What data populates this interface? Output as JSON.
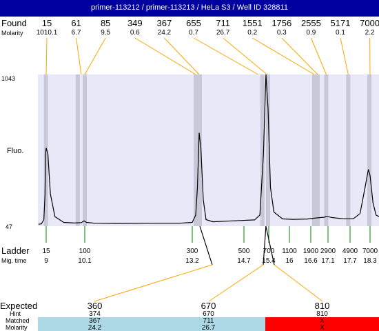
{
  "header": {
    "title": "primer-113212 / primer-113213 / HeLa S3 / Well ID 328811"
  },
  "labels": {
    "found": "Found",
    "molarity": "Molarity",
    "fluo": "Fluo.",
    "ladder": "Ladder",
    "mig_time": "Mig. time",
    "expected": "Expected",
    "hint": "Hint",
    "matched": "Matched",
    "molarity_bottom": "Molarity",
    "y_top": "1043",
    "y_bottom": "47"
  },
  "chart_data": {
    "type": "line",
    "title": "primer-113212 / primer-113213 / HeLa S3 / Well ID 328811",
    "ylabel": "Fluo.",
    "ylim": [
      47,
      1043
    ],
    "found_peaks": [
      {
        "size": "15",
        "molarity": "1010.1",
        "time": 9.0
      },
      {
        "size": "61",
        "molarity": "6.7",
        "time": 10.0
      },
      {
        "size": "85",
        "molarity": "9.5",
        "time": 10.1
      },
      {
        "size": "349",
        "molarity": "0.6",
        "time": 13.3
      },
      {
        "size": "367",
        "molarity": "24.2",
        "time": 13.4
      },
      {
        "size": "655",
        "molarity": "0.7",
        "time": 15.1
      },
      {
        "size": "711",
        "molarity": "26.7",
        "time": 15.35
      },
      {
        "size": "1551",
        "molarity": "0.2",
        "time": 16.7
      },
      {
        "size": "1756",
        "molarity": "0.3",
        "time": 16.8
      },
      {
        "size": "2555",
        "molarity": "0.9",
        "time": 17.05
      },
      {
        "size": "5171",
        "molarity": "0.1",
        "time": 17.65
      },
      {
        "size": "7000",
        "molarity": "2.2",
        "time": 18.3
      }
    ],
    "ladder": [
      {
        "size": "15",
        "time": "9",
        "t": 9.0
      },
      {
        "size": "100",
        "time": "10.1",
        "t": 10.1
      },
      {
        "size": "300",
        "time": "13.2",
        "t": 13.2
      },
      {
        "size": "500",
        "time": "14.7",
        "t": 14.7
      },
      {
        "size": "700",
        "time": "15.4",
        "t": 15.4
      },
      {
        "size": "1100",
        "time": "16",
        "t": 16.0
      },
      {
        "size": "1900",
        "time": "16.6",
        "t": 16.6
      },
      {
        "size": "2900",
        "time": "17.1",
        "t": 17.1
      },
      {
        "size": "4900",
        "time": "17.7",
        "t": 17.7
      },
      {
        "size": "7000",
        "time": "18.3",
        "t": 18.3
      }
    ],
    "trace": [
      [
        8.35,
        60
      ],
      [
        8.6,
        62
      ],
      [
        8.8,
        90
      ],
      [
        8.9,
        250
      ],
      [
        8.95,
        520
      ],
      [
        9.0,
        560
      ],
      [
        9.05,
        520
      ],
      [
        9.12,
        260
      ],
      [
        9.25,
        110
      ],
      [
        9.5,
        72
      ],
      [
        9.8,
        68
      ],
      [
        10.0,
        70
      ],
      [
        10.08,
        82
      ],
      [
        10.15,
        72
      ],
      [
        10.4,
        66
      ],
      [
        11.0,
        65
      ],
      [
        12.0,
        66
      ],
      [
        12.8,
        66
      ],
      [
        13.2,
        72
      ],
      [
        13.3,
        120
      ],
      [
        13.35,
        300
      ],
      [
        13.4,
        660
      ],
      [
        13.45,
        560
      ],
      [
        13.52,
        220
      ],
      [
        13.6,
        90
      ],
      [
        13.8,
        76
      ],
      [
        14.2,
        80
      ],
      [
        14.6,
        84
      ],
      [
        15.0,
        88
      ],
      [
        15.15,
        120
      ],
      [
        15.25,
        520
      ],
      [
        15.32,
        1043
      ],
      [
        15.38,
        820
      ],
      [
        15.45,
        300
      ],
      [
        15.55,
        140
      ],
      [
        15.8,
        95
      ],
      [
        16.1,
        92
      ],
      [
        16.5,
        94
      ],
      [
        16.8,
        102
      ],
      [
        17.0,
        106
      ],
      [
        17.05,
        112
      ],
      [
        17.2,
        104
      ],
      [
        17.5,
        96
      ],
      [
        17.8,
        96
      ],
      [
        18.0,
        130
      ],
      [
        18.15,
        300
      ],
      [
        18.25,
        420
      ],
      [
        18.3,
        380
      ],
      [
        18.4,
        200
      ],
      [
        18.5,
        120
      ],
      [
        18.6,
        110
      ]
    ],
    "bands": [
      8.98,
      9.9,
      10.1,
      13.3,
      13.42,
      15.22,
      15.38,
      16.7,
      16.8,
      17.05,
      17.65,
      18.28
    ],
    "expected": [
      {
        "expected": "360",
        "hint": "374",
        "matched": "367",
        "molarity": "24.2",
        "status": "match"
      },
      {
        "expected": "670",
        "hint": "670",
        "matched": "711",
        "molarity": "26.7",
        "status": "match"
      },
      {
        "expected": "810",
        "hint": "810",
        "matched": "X",
        "molarity": "X",
        "status": "missing"
      }
    ],
    "colors": {
      "title_bar": "#0000a0",
      "plot_bg": "#e8e8f8",
      "band": "#c8c8d8",
      "line": "#000000",
      "ladder_tick": "#008000",
      "connector": "#ffa500",
      "match": "#add8e6",
      "missing": "#ff0000"
    }
  }
}
